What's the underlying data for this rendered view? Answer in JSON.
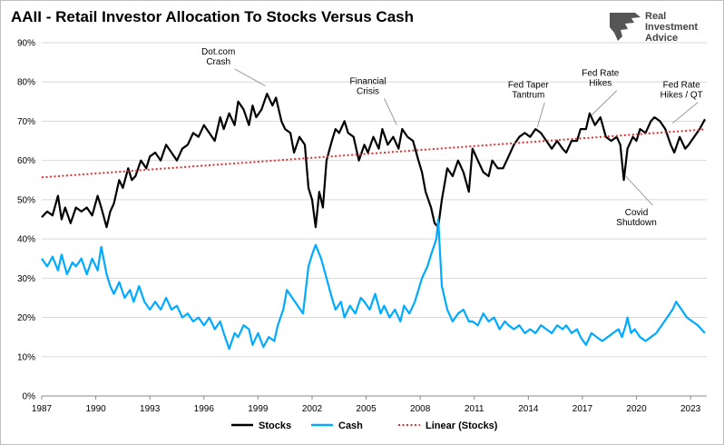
{
  "chart_data": {
    "type": "line",
    "title": "AAII - Retail Investor Allocation To Stocks Versus Cash",
    "xlabel": "",
    "ylabel": "",
    "xlim": [
      1987,
      2023.9
    ],
    "ylim": [
      0,
      90
    ],
    "x_ticks": [
      "1987",
      "1990",
      "1993",
      "1996",
      "1999",
      "2002",
      "2005",
      "2008",
      "2011",
      "2014",
      "2017",
      "2020",
      "2023"
    ],
    "y_ticks": [
      "0%",
      "10%",
      "20%",
      "30%",
      "40%",
      "50%",
      "60%",
      "70%",
      "80%",
      "90%"
    ],
    "grid": "horizontal",
    "legend_position": "bottom",
    "series": [
      {
        "name": "Stocks",
        "color": "#000000",
        "points": [
          [
            1987.0,
            45.5
          ],
          [
            1987.3,
            47
          ],
          [
            1987.6,
            46
          ],
          [
            1987.9,
            51
          ],
          [
            1988.1,
            45
          ],
          [
            1988.3,
            48
          ],
          [
            1988.6,
            44
          ],
          [
            1988.9,
            48
          ],
          [
            1989.2,
            47
          ],
          [
            1989.5,
            48
          ],
          [
            1989.8,
            46
          ],
          [
            1990.1,
            51
          ],
          [
            1990.3,
            48
          ],
          [
            1990.6,
            43
          ],
          [
            1990.8,
            47
          ],
          [
            1991.0,
            49
          ],
          [
            1991.3,
            55
          ],
          [
            1991.5,
            53
          ],
          [
            1991.8,
            58
          ],
          [
            1992.0,
            55
          ],
          [
            1992.2,
            56
          ],
          [
            1992.5,
            60
          ],
          [
            1992.8,
            58
          ],
          [
            1993.0,
            61
          ],
          [
            1993.3,
            62
          ],
          [
            1993.6,
            60
          ],
          [
            1993.9,
            64
          ],
          [
            1994.2,
            62
          ],
          [
            1994.5,
            60
          ],
          [
            1994.8,
            63
          ],
          [
            1995.1,
            64
          ],
          [
            1995.4,
            67
          ],
          [
            1995.7,
            66
          ],
          [
            1996.0,
            69
          ],
          [
            1996.3,
            67
          ],
          [
            1996.6,
            65
          ],
          [
            1996.9,
            71
          ],
          [
            1997.1,
            68
          ],
          [
            1997.4,
            72
          ],
          [
            1997.7,
            69
          ],
          [
            1997.9,
            75
          ],
          [
            1998.2,
            73
          ],
          [
            1998.5,
            69
          ],
          [
            1998.7,
            74
          ],
          [
            1998.9,
            71
          ],
          [
            1999.2,
            73
          ],
          [
            1999.5,
            77
          ],
          [
            1999.8,
            74
          ],
          [
            2000.0,
            76
          ],
          [
            2000.3,
            70
          ],
          [
            2000.5,
            68
          ],
          [
            2000.8,
            67
          ],
          [
            2001.0,
            62
          ],
          [
            2001.3,
            66
          ],
          [
            2001.6,
            64
          ],
          [
            2001.8,
            53
          ],
          [
            2002.0,
            50
          ],
          [
            2002.2,
            43
          ],
          [
            2002.4,
            52
          ],
          [
            2002.6,
            48
          ],
          [
            2002.8,
            60
          ],
          [
            2003.1,
            65
          ],
          [
            2003.3,
            68
          ],
          [
            2003.5,
            67
          ],
          [
            2003.8,
            70
          ],
          [
            2004.0,
            67
          ],
          [
            2004.3,
            66
          ],
          [
            2004.6,
            60
          ],
          [
            2004.9,
            64
          ],
          [
            2005.1,
            62
          ],
          [
            2005.4,
            66
          ],
          [
            2005.7,
            63
          ],
          [
            2005.9,
            68
          ],
          [
            2006.2,
            64
          ],
          [
            2006.5,
            66
          ],
          [
            2006.8,
            63
          ],
          [
            2007.0,
            68
          ],
          [
            2007.3,
            66
          ],
          [
            2007.6,
            65
          ],
          [
            2007.9,
            60
          ],
          [
            2008.1,
            57
          ],
          [
            2008.3,
            52
          ],
          [
            2008.6,
            48
          ],
          [
            2008.8,
            44
          ],
          [
            2009.0,
            43
          ],
          [
            2009.2,
            50
          ],
          [
            2009.5,
            58
          ],
          [
            2009.8,
            56
          ],
          [
            2010.1,
            60
          ],
          [
            2010.4,
            57
          ],
          [
            2010.7,
            52
          ],
          [
            2010.9,
            63
          ],
          [
            2011.2,
            60
          ],
          [
            2011.5,
            57
          ],
          [
            2011.8,
            56
          ],
          [
            2012.0,
            60
          ],
          [
            2012.3,
            58
          ],
          [
            2012.6,
            58
          ],
          [
            2012.9,
            61
          ],
          [
            2013.2,
            64
          ],
          [
            2013.5,
            66
          ],
          [
            2013.8,
            67
          ],
          [
            2014.1,
            66
          ],
          [
            2014.4,
            68
          ],
          [
            2014.7,
            67
          ],
          [
            2015.0,
            65
          ],
          [
            2015.3,
            63
          ],
          [
            2015.6,
            65
          ],
          [
            2015.9,
            63
          ],
          [
            2016.1,
            62
          ],
          [
            2016.4,
            65
          ],
          [
            2016.7,
            65
          ],
          [
            2016.9,
            68
          ],
          [
            2017.2,
            68
          ],
          [
            2017.4,
            72
          ],
          [
            2017.7,
            69
          ],
          [
            2018.0,
            71
          ],
          [
            2018.3,
            66
          ],
          [
            2018.6,
            65
          ],
          [
            2018.9,
            66
          ],
          [
            2019.1,
            64
          ],
          [
            2019.3,
            55
          ],
          [
            2019.5,
            63
          ],
          [
            2019.8,
            66
          ],
          [
            2020.0,
            65
          ],
          [
            2020.2,
            68
          ],
          [
            2020.5,
            67
          ],
          [
            2020.8,
            70
          ],
          [
            2021.0,
            71
          ],
          [
            2021.3,
            70
          ],
          [
            2021.6,
            68
          ],
          [
            2021.9,
            64
          ],
          [
            2022.1,
            62
          ],
          [
            2022.4,
            66
          ],
          [
            2022.7,
            63
          ],
          [
            2022.9,
            64
          ],
          [
            2023.2,
            66
          ],
          [
            2023.5,
            68
          ],
          [
            2023.8,
            70.5
          ]
        ]
      },
      {
        "name": "Cash",
        "color": "#00aaff",
        "points": [
          [
            1987.0,
            35
          ],
          [
            1987.3,
            33
          ],
          [
            1987.6,
            35.5
          ],
          [
            1987.9,
            32
          ],
          [
            1988.1,
            36
          ],
          [
            1988.4,
            31
          ],
          [
            1988.7,
            34
          ],
          [
            1988.9,
            33
          ],
          [
            1989.2,
            35
          ],
          [
            1989.5,
            31
          ],
          [
            1989.8,
            35
          ],
          [
            1990.1,
            32
          ],
          [
            1990.3,
            38
          ],
          [
            1990.6,
            31
          ],
          [
            1990.8,
            28
          ],
          [
            1991.0,
            26
          ],
          [
            1991.3,
            29
          ],
          [
            1991.6,
            25
          ],
          [
            1991.9,
            27
          ],
          [
            1992.1,
            24
          ],
          [
            1992.4,
            28
          ],
          [
            1992.7,
            24
          ],
          [
            1993.0,
            22
          ],
          [
            1993.3,
            24
          ],
          [
            1993.6,
            22
          ],
          [
            1993.9,
            25
          ],
          [
            1994.2,
            22
          ],
          [
            1994.5,
            23
          ],
          [
            1994.8,
            20
          ],
          [
            1995.1,
            21
          ],
          [
            1995.4,
            19
          ],
          [
            1995.7,
            20
          ],
          [
            1996.0,
            18
          ],
          [
            1996.3,
            20
          ],
          [
            1996.6,
            17
          ],
          [
            1996.9,
            19
          ],
          [
            1997.1,
            16
          ],
          [
            1997.4,
            12
          ],
          [
            1997.7,
            16
          ],
          [
            1997.9,
            15
          ],
          [
            1998.2,
            18
          ],
          [
            1998.5,
            17
          ],
          [
            1998.7,
            13
          ],
          [
            1999.0,
            16
          ],
          [
            1999.3,
            12.5
          ],
          [
            1999.6,
            15
          ],
          [
            1999.9,
            14
          ],
          [
            2000.1,
            18
          ],
          [
            2000.4,
            22
          ],
          [
            2000.6,
            27
          ],
          [
            2000.9,
            25
          ],
          [
            2001.2,
            23
          ],
          [
            2001.5,
            21
          ],
          [
            2001.8,
            33
          ],
          [
            2002.0,
            36
          ],
          [
            2002.2,
            38.5
          ],
          [
            2002.5,
            35
          ],
          [
            2002.8,
            30
          ],
          [
            2003.1,
            25
          ],
          [
            2003.3,
            22
          ],
          [
            2003.6,
            24
          ],
          [
            2003.8,
            20
          ],
          [
            2004.1,
            23
          ],
          [
            2004.4,
            21
          ],
          [
            2004.7,
            25
          ],
          [
            2004.9,
            24
          ],
          [
            2005.2,
            22
          ],
          [
            2005.5,
            26
          ],
          [
            2005.8,
            21
          ],
          [
            2006.0,
            23
          ],
          [
            2006.3,
            20
          ],
          [
            2006.6,
            22
          ],
          [
            2006.9,
            19
          ],
          [
            2007.1,
            23
          ],
          [
            2007.4,
            21
          ],
          [
            2007.7,
            24
          ],
          [
            2007.9,
            27
          ],
          [
            2008.1,
            30
          ],
          [
            2008.4,
            33
          ],
          [
            2008.6,
            36
          ],
          [
            2008.9,
            40
          ],
          [
            2009.0,
            45
          ],
          [
            2009.2,
            28
          ],
          [
            2009.5,
            22
          ],
          [
            2009.8,
            19
          ],
          [
            2010.1,
            21
          ],
          [
            2010.4,
            22
          ],
          [
            2010.7,
            19
          ],
          [
            2010.9,
            19
          ],
          [
            2011.2,
            18
          ],
          [
            2011.5,
            21
          ],
          [
            2011.8,
            19
          ],
          [
            2012.1,
            20
          ],
          [
            2012.4,
            17
          ],
          [
            2012.7,
            19
          ],
          [
            2012.9,
            18
          ],
          [
            2013.2,
            17
          ],
          [
            2013.5,
            18
          ],
          [
            2013.8,
            16
          ],
          [
            2014.1,
            17
          ],
          [
            2014.4,
            16
          ],
          [
            2014.7,
            18
          ],
          [
            2015.0,
            17
          ],
          [
            2015.3,
            16
          ],
          [
            2015.6,
            18
          ],
          [
            2015.9,
            17
          ],
          [
            2016.1,
            18
          ],
          [
            2016.4,
            16
          ],
          [
            2016.7,
            17
          ],
          [
            2016.9,
            15
          ],
          [
            2017.2,
            13
          ],
          [
            2017.5,
            16
          ],
          [
            2017.8,
            15
          ],
          [
            2018.1,
            14
          ],
          [
            2018.4,
            15
          ],
          [
            2018.7,
            16
          ],
          [
            2019.0,
            17
          ],
          [
            2019.2,
            15
          ],
          [
            2019.4,
            18
          ],
          [
            2019.5,
            20
          ],
          [
            2019.7,
            16
          ],
          [
            2019.9,
            17
          ],
          [
            2020.2,
            15
          ],
          [
            2020.5,
            14
          ],
          [
            2020.8,
            15
          ],
          [
            2021.1,
            16
          ],
          [
            2021.4,
            18
          ],
          [
            2021.7,
            20
          ],
          [
            2022.0,
            22
          ],
          [
            2022.2,
            24
          ],
          [
            2022.5,
            22
          ],
          [
            2022.8,
            20
          ],
          [
            2023.1,
            19
          ],
          [
            2023.4,
            18
          ],
          [
            2023.8,
            16
          ]
        ]
      },
      {
        "name": "Linear (Stocks)",
        "color": "#e03030",
        "dashed": true,
        "points": [
          [
            1987.0,
            55.7
          ],
          [
            2023.8,
            67.9
          ]
        ]
      }
    ],
    "annotations": [
      {
        "lines": [
          "Dot.com",
          "Crash"
        ],
        "x": 1999.4,
        "y": 79,
        "label_x": 1996.8,
        "label_y": 87
      },
      {
        "lines": [
          "Financial",
          "Crisis"
        ],
        "x": 2006.7,
        "y": 69,
        "label_x": 2005.1,
        "label_y": 79.5
      },
      {
        "lines": [
          "Fed Taper",
          "Tantrum"
        ],
        "x": 2014.5,
        "y": 68.5,
        "label_x": 2014.0,
        "label_y": 78.5
      },
      {
        "lines": [
          "Fed Rate",
          "Hikes"
        ],
        "x": 2017.5,
        "y": 71.5,
        "label_x": 2018.0,
        "label_y": 81.5
      },
      {
        "lines": [
          "Fed Rate",
          "Hikes / QT"
        ],
        "x": 2022.0,
        "y": 69.5,
        "label_x": 2022.5,
        "label_y": 78.5
      },
      {
        "lines": [
          "Covid",
          "Shutdown"
        ],
        "x": 2019.4,
        "y": 56,
        "label_x": 2020.0,
        "label_y": 46,
        "below": true
      }
    ]
  },
  "branding": {
    "name_line1": "Real",
    "name_line2": "Investment",
    "name_line3": "Advice",
    "logo_icon": "eagle-icon"
  }
}
